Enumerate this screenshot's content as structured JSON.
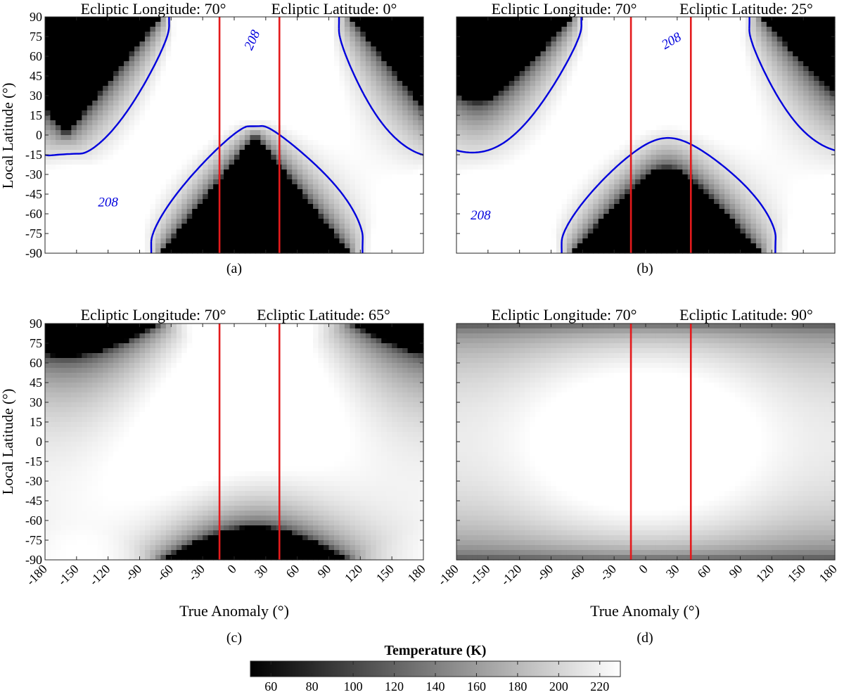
{
  "chart_data": [
    {
      "type": "heatmap",
      "panel_label": "(a)",
      "title_longitude": "Ecliptic Longitude: 70°",
      "title_latitude": "Ecliptic Latitude: 0°",
      "ylabel": "Local Latitude (°)",
      "xlabel": "",
      "xlim": [
        -180,
        180
      ],
      "ylim": [
        -90,
        90
      ],
      "ecliptic_latitude": 0,
      "x_ticks": [
        -180,
        -150,
        -120,
        -90,
        -60,
        -30,
        0,
        30,
        60,
        90,
        120,
        150,
        180
      ],
      "y_ticks": [
        90,
        75,
        60,
        45,
        30,
        15,
        0,
        -15,
        -30,
        -45,
        -60,
        -75,
        -90
      ],
      "show_x_tick_labels": false,
      "show_y_tick_labels": true,
      "red_lines_x": [
        -14,
        43
      ],
      "contour_level": 208,
      "contour_labels": [
        {
          "text": "208",
          "x": 18,
          "y": 72,
          "angle": -65
        },
        {
          "text": "208",
          "x": -120,
          "y": -52,
          "angle": 0
        }
      ]
    },
    {
      "type": "heatmap",
      "panel_label": "(b)",
      "title_longitude": "Ecliptic Longitude: 70°",
      "title_latitude": "Ecliptic Latitude: 25°",
      "ylabel": "",
      "xlabel": "",
      "xlim": [
        -180,
        180
      ],
      "ylim": [
        -90,
        90
      ],
      "ecliptic_latitude": 25,
      "x_ticks": [
        -180,
        -150,
        -120,
        -90,
        -60,
        -30,
        0,
        30,
        60,
        90,
        120,
        150,
        180
      ],
      "y_ticks": [
        90,
        75,
        60,
        45,
        30,
        15,
        0,
        -15,
        -30,
        -45,
        -60,
        -75,
        -90
      ],
      "show_x_tick_labels": false,
      "show_y_tick_labels": false,
      "red_lines_x": [
        -14,
        43
      ],
      "contour_level": 208,
      "contour_labels": [
        {
          "text": "208",
          "x": 25,
          "y": 71,
          "angle": -30
        },
        {
          "text": "208",
          "x": -157,
          "y": -62,
          "angle": 0
        }
      ]
    },
    {
      "type": "heatmap",
      "panel_label": "(c)",
      "title_longitude": "Ecliptic Longitude: 70°",
      "title_latitude": "Ecliptic Latitude: 65°",
      "ylabel": "Local Latitude (°)",
      "xlabel": "True Anomaly (°)",
      "xlim": [
        -180,
        180
      ],
      "ylim": [
        -90,
        90
      ],
      "ecliptic_latitude": 65,
      "x_ticks": [
        -180,
        -150,
        -120,
        -90,
        -60,
        -30,
        0,
        30,
        60,
        90,
        120,
        150,
        180
      ],
      "y_ticks": [
        90,
        75,
        60,
        45,
        30,
        15,
        0,
        -15,
        -30,
        -45,
        -60,
        -75,
        -90
      ],
      "show_x_tick_labels": true,
      "show_y_tick_labels": true,
      "red_lines_x": [
        -14,
        43
      ],
      "contour_level": null,
      "contour_labels": []
    },
    {
      "type": "heatmap",
      "panel_label": "(d)",
      "title_longitude": "Ecliptic Longitude: 70°",
      "title_latitude": "Ecliptic Latitude: 90°",
      "ylabel": "",
      "xlabel": "True Anomaly (°)",
      "xlim": [
        -180,
        180
      ],
      "ylim": [
        -90,
        90
      ],
      "ecliptic_latitude": 90,
      "x_ticks": [
        -180,
        -150,
        -120,
        -90,
        -60,
        -30,
        0,
        30,
        60,
        90,
        120,
        150,
        180
      ],
      "y_ticks": [
        90,
        75,
        60,
        45,
        30,
        15,
        0,
        -15,
        -30,
        -45,
        -60,
        -75,
        -90
      ],
      "show_x_tick_labels": true,
      "show_y_tick_labels": false,
      "red_lines_x": [
        -14,
        43
      ],
      "contour_level": null,
      "contour_labels": []
    }
  ],
  "colorbar": {
    "label": "Temperature (K)",
    "range": [
      50,
      230
    ],
    "ticks": [
      60,
      80,
      100,
      120,
      140,
      160,
      180,
      200,
      220
    ],
    "colormap": "gray"
  },
  "colors": {
    "marker_line": "#e41a1c",
    "contour": "#0000dd",
    "axis": "#262626"
  }
}
